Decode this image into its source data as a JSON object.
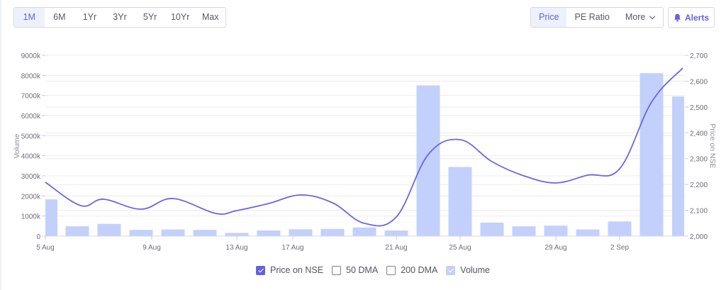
{
  "range_buttons": [
    {
      "label": "1M",
      "active": true
    },
    {
      "label": "6M",
      "active": false
    },
    {
      "label": "1Yr",
      "active": false
    },
    {
      "label": "3Yr",
      "active": false
    },
    {
      "label": "5Yr",
      "active": false
    },
    {
      "label": "10Yr",
      "active": false
    },
    {
      "label": "Max",
      "active": false
    }
  ],
  "view_buttons": {
    "price": "Price",
    "pe_ratio": "PE Ratio",
    "more": "More"
  },
  "alerts": {
    "label": "Alerts",
    "icon": "bell-icon"
  },
  "legend": [
    {
      "label": "Price on NSE",
      "checked": true,
      "style": "checked"
    },
    {
      "label": "50 DMA",
      "checked": false,
      "style": ""
    },
    {
      "label": "200 DMA",
      "checked": false,
      "style": ""
    },
    {
      "label": "Volume",
      "checked": true,
      "style": "checked-light"
    }
  ],
  "colors": {
    "accent": "#6361e0",
    "price_line": "#6b66e3",
    "volume_bar": "#c3d0fb",
    "grid": "#ececec",
    "axis_text": "#6b6f7a"
  },
  "chart_data": {
    "type": "bar+line",
    "xlabel": "",
    "ylabel_left": "Volume",
    "ylabel_right": "Price on NSE",
    "y_left_ticks": [
      "0",
      "1000k",
      "2000k",
      "3000k",
      "4000k",
      "5000k",
      "6000k",
      "7000k",
      "8000k",
      "9000k"
    ],
    "y_left_range": [
      0,
      9000
    ],
    "y_right_ticks": [
      "2,000",
      "2,100",
      "2,200",
      "2,300",
      "2,400",
      "2,500",
      "2,600",
      "2,700"
    ],
    "y_right_range": [
      2000,
      2700
    ],
    "x_tick_labels": [
      "5 Aug",
      "9 Aug",
      "13 Aug",
      "17 Aug",
      "21 Aug",
      "25 Aug",
      "29 Aug",
      "2 Sep"
    ],
    "grid": true,
    "legend_position": "bottom",
    "categories": [
      "5 Aug",
      "6 Aug",
      "7 Aug",
      "8 Aug",
      "9 Aug",
      "12 Aug",
      "13 Aug",
      "14 Aug",
      "16 Aug",
      "19 Aug",
      "20 Aug",
      "21 Aug",
      "22 Aug",
      "23 Aug",
      "26 Aug",
      "27 Aug",
      "28 Aug",
      "29 Aug",
      "30 Aug",
      "2 Sep",
      "3 Sep"
    ],
    "series": [
      {
        "name": "Volume",
        "type": "bar",
        "unit": "k",
        "values": [
          1830,
          490,
          610,
          310,
          330,
          310,
          160,
          280,
          340,
          360,
          430,
          280,
          7500,
          3440,
          670,
          490,
          520,
          330,
          730,
          8110,
          6950
        ]
      },
      {
        "name": "Price on NSE",
        "type": "line",
        "values": [
          2210,
          2120,
          2150,
          2105,
          2150,
          2090,
          2100,
          2130,
          2160,
          2120,
          2040,
          2070,
          2310,
          2375,
          2300,
          2240,
          2210,
          2235,
          2260,
          2530,
          2650
        ]
      }
    ]
  }
}
